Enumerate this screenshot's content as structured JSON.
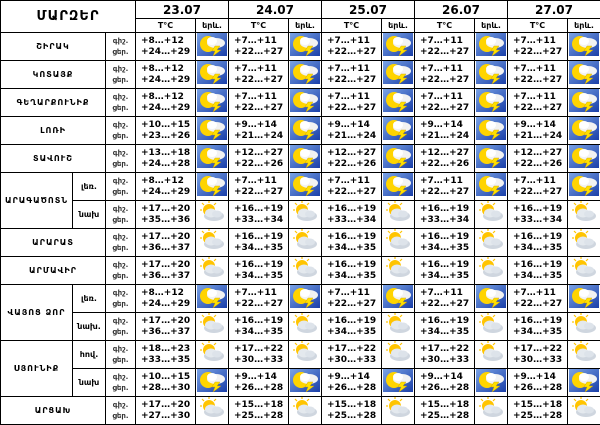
{
  "header": {
    "region": "ՄԱՐԶԵՐ",
    "dates": [
      "23.07",
      "24.07",
      "25.07",
      "26.07",
      "27.07"
    ],
    "temp": "T°C",
    "phen": "երև.",
    "night": "գիշ.",
    "day": "ցեր."
  },
  "regions": [
    {
      "name": "ՇԻՐԱԿ",
      "rows": [
        {
          "icon": "storm",
          "cells": [
            {
              "night": "+8…+12",
              "day": "+24…+29"
            },
            {
              "night": "+7…+11",
              "day": "+22…+27"
            },
            {
              "night": "+7…+11",
              "day": "+22…+27"
            },
            {
              "night": "+7…+11",
              "day": "+22…+27"
            },
            {
              "night": "+7…+11",
              "day": "+22…+27"
            }
          ]
        }
      ]
    },
    {
      "name": "ԿՈՏԱՅՔ",
      "rows": [
        {
          "icon": "storm",
          "cells": [
            {
              "night": "+8…+12",
              "day": "+24…+29"
            },
            {
              "night": "+7…+11",
              "day": "+22…+27"
            },
            {
              "night": "+7…+11",
              "day": "+22…+27"
            },
            {
              "night": "+7…+11",
              "day": "+22…+27"
            },
            {
              "night": "+7…+11",
              "day": "+22…+27"
            }
          ]
        }
      ]
    },
    {
      "name": "ԳԵՂԱՐՔՈՒՆԻՔ",
      "rows": [
        {
          "icon": "storm",
          "cells": [
            {
              "night": "+8…+12",
              "day": "+24…+29"
            },
            {
              "night": "+7…+11",
              "day": "+22…+27"
            },
            {
              "night": "+7…+11",
              "day": "+22…+27"
            },
            {
              "night": "+7…+11",
              "day": "+22…+27"
            },
            {
              "night": "+7…+11",
              "day": "+22…+27"
            }
          ]
        }
      ]
    },
    {
      "name": "ԼՈՌԻ",
      "rows": [
        {
          "icon": "storm",
          "cells": [
            {
              "night": "+10…+15",
              "day": "+23…+26"
            },
            {
              "night": "+9…+14",
              "day": "+21…+24"
            },
            {
              "night": "+9…+14",
              "day": "+21…+24"
            },
            {
              "night": "+9…+14",
              "day": "+21…+24"
            },
            {
              "night": "+9…+14",
              "day": "+21…+24"
            }
          ]
        }
      ]
    },
    {
      "name": "ՏԱՎՈՒՇ",
      "rows": [
        {
          "icon": "storm",
          "cells": [
            {
              "night": "+13…+18",
              "day": "+24…+28"
            },
            {
              "night": "+12…+27",
              "day": "+22…+26"
            },
            {
              "night": "+12…+27",
              "day": "+22…+26"
            },
            {
              "night": "+12…+27",
              "day": "+22…+26"
            },
            {
              "night": "+12…+27",
              "day": "+22…+26"
            }
          ]
        }
      ]
    },
    {
      "name": "ԱՐԱԳԱԾՈՏՆ",
      "rows": [
        {
          "sub": "լեռ.",
          "icon": "storm",
          "cells": [
            {
              "night": "+8…+12",
              "day": "+24…+29"
            },
            {
              "night": "+7…+11",
              "day": "+22…+27"
            },
            {
              "night": "+7…+11",
              "day": "+22…+27"
            },
            {
              "night": "+7…+11",
              "day": "+22…+27"
            },
            {
              "night": "+7…+11",
              "day": "+22…+27"
            }
          ]
        },
        {
          "sub": "նախ",
          "icon": "partly-cloudy",
          "cells": [
            {
              "night": "+17…+20",
              "day": "+35…+36"
            },
            {
              "night": "+16…+19",
              "day": "+33…+34"
            },
            {
              "night": "+16…+19",
              "day": "+33…+34"
            },
            {
              "night": "+16…+19",
              "day": "+33…+34"
            },
            {
              "night": "+16…+19",
              "day": "+33…+34"
            }
          ]
        }
      ]
    },
    {
      "name": "ԱՐԱՐԱՏ",
      "rows": [
        {
          "icon": "partly-cloudy",
          "cells": [
            {
              "night": "+17…+20",
              "day": "+36…+37"
            },
            {
              "night": "+16…+19",
              "day": "+34…+35"
            },
            {
              "night": "+16…+19",
              "day": "+34…+35"
            },
            {
              "night": "+16…+19",
              "day": "+34…+35"
            },
            {
              "night": "+16…+19",
              "day": "+34…+35"
            }
          ]
        }
      ]
    },
    {
      "name": "ԱՐՄԱՎԻՐ",
      "rows": [
        {
          "icon": "partly-cloudy",
          "cells": [
            {
              "night": "+17…+20",
              "day": "+36…+37"
            },
            {
              "night": "+16…+19",
              "day": "+34…+35"
            },
            {
              "night": "+16…+19",
              "day": "+34…+35"
            },
            {
              "night": "+16…+19",
              "day": "+34…+35"
            },
            {
              "night": "+16…+19",
              "day": "+34…+35"
            }
          ]
        }
      ]
    },
    {
      "name": "ՎԱՅՈՑ ՁՈՐ",
      "rows": [
        {
          "sub": "լեռ.",
          "icon": "storm",
          "cells": [
            {
              "night": "+8…+12",
              "day": "+24…+29"
            },
            {
              "night": "+7…+11",
              "day": "+22…+27"
            },
            {
              "night": "+7…+11",
              "day": "+22…+27"
            },
            {
              "night": "+7…+11",
              "day": "+22…+27"
            },
            {
              "night": "+7…+11",
              "day": "+22…+27"
            }
          ]
        },
        {
          "sub": "նախ.",
          "icon": "partly-cloudy",
          "cells": [
            {
              "night": "+17…+20",
              "day": "+36…+37"
            },
            {
              "night": "+16…+19",
              "day": "+34…+35"
            },
            {
              "night": "+16…+19",
              "day": "+34…+35"
            },
            {
              "night": "+16…+19",
              "day": "+34…+35"
            },
            {
              "night": "+16…+19",
              "day": "+34…+35"
            }
          ]
        }
      ]
    },
    {
      "name": "ՍՅՈՒՆԻՔ",
      "rows": [
        {
          "sub": "հով.",
          "icon": "partly-cloudy",
          "cells": [
            {
              "night": "+18…+23",
              "day": "+33…+35"
            },
            {
              "night": "+17…+22",
              "day": "+30…+33"
            },
            {
              "night": "+17…+22",
              "day": "+30…+33"
            },
            {
              "night": "+17…+22",
              "day": "+30…+33"
            },
            {
              "night": "+17…+22",
              "day": "+30…+33"
            }
          ]
        },
        {
          "sub": "նախ",
          "icon": "storm",
          "cells": [
            {
              "night": "+10…+15",
              "day": "+28…+30"
            },
            {
              "night": "+9…+14",
              "day": "+26…+28"
            },
            {
              "night": "+9…+14",
              "day": "+26…+28"
            },
            {
              "night": "+9…+14",
              "day": "+26…+28"
            },
            {
              "night": "+9…+14",
              "day": "+26…+28"
            }
          ]
        }
      ]
    },
    {
      "name": "ԱՐՑԱԽ",
      "rows": [
        {
          "icon": "partly-cloudy",
          "cells": [
            {
              "night": "+17…+20",
              "day": "+27…+30"
            },
            {
              "night": "+15…+18",
              "day": "+25…+28"
            },
            {
              "night": "+15…+18",
              "day": "+25…+28"
            },
            {
              "night": "+15…+18",
              "day": "+25…+28"
            },
            {
              "night": "+15…+18",
              "day": "+25…+28"
            }
          ]
        }
      ]
    }
  ]
}
